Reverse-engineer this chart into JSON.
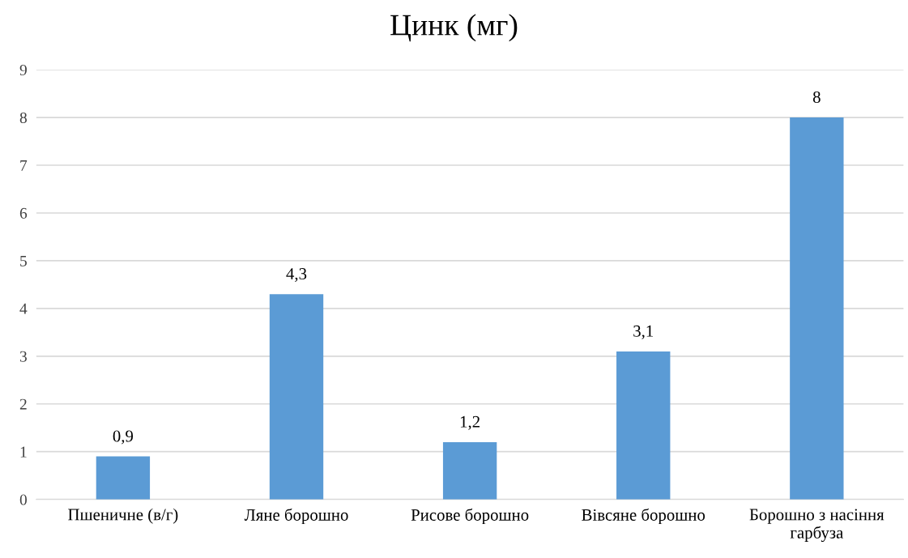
{
  "chart_data": {
    "type": "bar",
    "title": "Цинк (мг)",
    "categories": [
      "Пшеничне (в/г)",
      "Ляне борошно",
      "Рисове борошно",
      "Вівсяне борошно",
      "Борошно з насіння\nгарбуза"
    ],
    "values": [
      0.9,
      4.3,
      1.2,
      3.1,
      8
    ],
    "value_labels": [
      "0,9",
      "4,3",
      "1,2",
      "3,1",
      "8"
    ],
    "color": "#5b9bd5",
    "ylim": [
      0,
      9
    ],
    "yticks": [
      0,
      1,
      2,
      3,
      4,
      5,
      6,
      7,
      8,
      9
    ],
    "grid": "y",
    "legend": false
  }
}
